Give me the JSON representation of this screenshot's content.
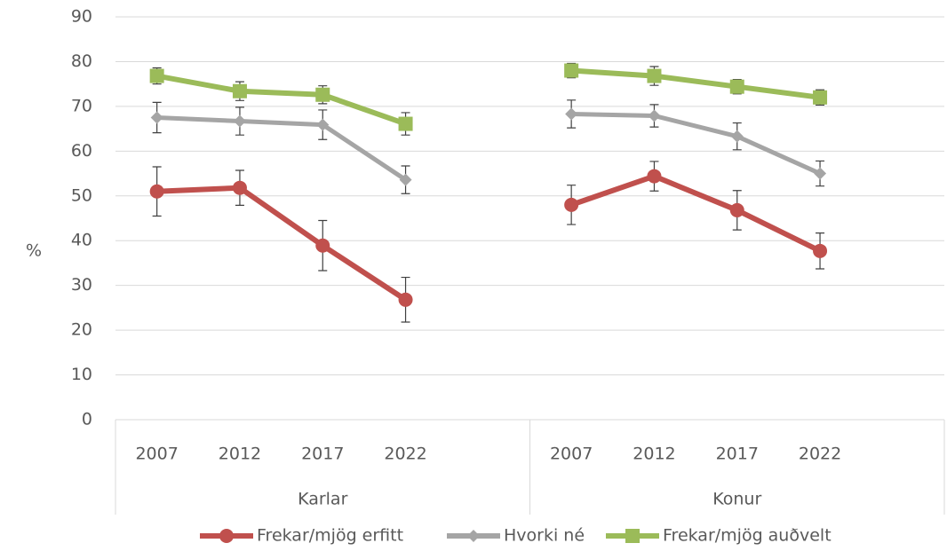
{
  "chart_data": {
    "type": "line",
    "y_label": "%",
    "categories": [
      "2007",
      "2012",
      "2017",
      "2022",
      null,
      "2007",
      "2012",
      "2017",
      "2022",
      null
    ],
    "groups": [
      "Karlar",
      "Konur"
    ],
    "ylim": [
      0,
      90
    ],
    "yticks": [
      0,
      10,
      20,
      30,
      40,
      50,
      60,
      70,
      80,
      90
    ],
    "grid": true,
    "legend": "bottom",
    "series": [
      {
        "name": "Frekar/mjög erfitt",
        "color": "#c0504d",
        "marker": "circle",
        "values": [
          51.0,
          51.8,
          38.9,
          26.8,
          null,
          48.0,
          54.4,
          46.8,
          37.7,
          null
        ],
        "errors": [
          5.5,
          3.9,
          5.6,
          5.0,
          null,
          4.4,
          3.3,
          4.4,
          4.0,
          null
        ]
      },
      {
        "name": "Hvorki né",
        "color": "#a5a5a5",
        "marker": "diamond",
        "values": [
          67.5,
          66.7,
          65.9,
          53.6,
          null,
          68.3,
          67.9,
          63.3,
          55.0,
          null
        ],
        "errors": [
          3.4,
          3.1,
          3.3,
          3.1,
          null,
          3.1,
          2.5,
          3.0,
          2.8,
          null
        ]
      },
      {
        "name": "Frekar/mjög auðvelt",
        "color": "#9bbb59",
        "marker": "square",
        "values": [
          76.8,
          73.4,
          72.6,
          66.1,
          null,
          78.0,
          76.8,
          74.4,
          72.0,
          null
        ],
        "errors": [
          1.8,
          2.1,
          2.0,
          2.5,
          null,
          1.6,
          2.1,
          1.6,
          1.7,
          null
        ]
      }
    ]
  }
}
